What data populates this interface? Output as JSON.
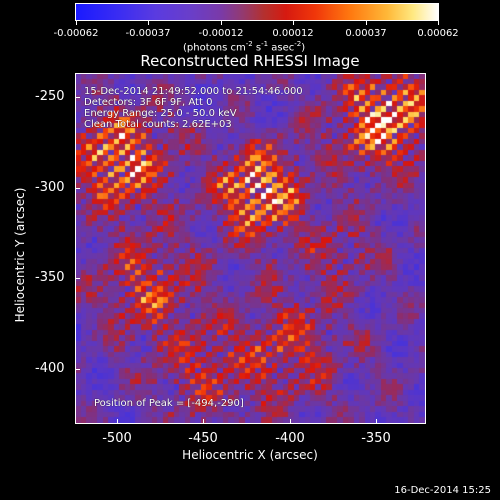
{
  "colorbar": {
    "ticks": [
      "-0.00062",
      "-0.00037",
      "-0.00012",
      "0.00012",
      "0.00037",
      "0.00062"
    ],
    "unit_label": "(photons cm",
    "unit_exp1": "-2",
    "unit_mid": " s",
    "unit_exp2": "-1",
    "unit_end": " asec",
    "unit_exp3": "-2",
    "unit_close": ")"
  },
  "title": "Reconstructed RHESSI Image",
  "info": {
    "line1": "15-Dec-2014 21:49:52.000 to 21:54:46.000",
    "line2": "Detectors: 3F 6F 9F, Att 0",
    "line3": "Energy Range: 25.0 - 50.0 keV",
    "line4": "Clean    Total counts: 2.62E+03",
    "peak": "Position of Peak = [-494,-290]"
  },
  "axes": {
    "xlabel": "Heliocentric X (arcsec)",
    "ylabel": "Heliocentric Y (arcsec)",
    "xticks": [
      "-500",
      "-450",
      "-400",
      "-350"
    ],
    "yticks": [
      "-250",
      "-300",
      "-350",
      "-400"
    ]
  },
  "footer": "16-Dec-2014 15:25",
  "colors": {
    "background": "#000000",
    "text": "#ffffff",
    "low": "#1a1aff",
    "mid": "#6a3ec8",
    "high": "#ffffff"
  }
}
